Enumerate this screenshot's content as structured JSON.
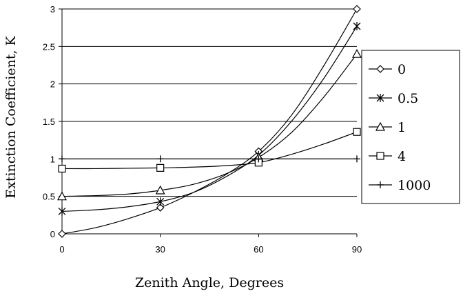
{
  "chart_data": {
    "type": "line",
    "xlabel": "Zenith Angle, Degrees",
    "ylabel": "Extinction Coefficient, K",
    "xlim": [
      0,
      90
    ],
    "ylim": [
      0,
      3
    ],
    "xticks": [
      "0",
      "30",
      "60",
      "90"
    ],
    "xtick_values": [
      0,
      30,
      60,
      90
    ],
    "yticks": [
      "0",
      "0.5",
      "1",
      "1.5",
      "2",
      "2.5",
      "3"
    ],
    "ytick_values": [
      0,
      0.5,
      1,
      1.5,
      2,
      2.5,
      3
    ],
    "grid": "horizontal",
    "legend_position": "right",
    "series": [
      {
        "name": "0",
        "marker": "diamond",
        "points": [
          [
            0,
            0.0
          ],
          [
            30,
            0.35
          ],
          [
            60,
            1.1
          ],
          [
            90,
            3.0
          ]
        ],
        "curve": [
          [
            0,
            0.0
          ],
          [
            10,
            0.08
          ],
          [
            20,
            0.2
          ],
          [
            30,
            0.35
          ],
          [
            40,
            0.55
          ],
          [
            50,
            0.79
          ],
          [
            60,
            1.1
          ],
          [
            70,
            1.58
          ],
          [
            80,
            2.25
          ],
          [
            90,
            3.0
          ]
        ]
      },
      {
        "name": "0.5",
        "marker": "asterisk",
        "points": [
          [
            0,
            0.3
          ],
          [
            30,
            0.43
          ],
          [
            60,
            1.05
          ],
          [
            90,
            2.77
          ]
        ],
        "curve": [
          [
            0,
            0.3
          ],
          [
            10,
            0.32
          ],
          [
            20,
            0.36
          ],
          [
            30,
            0.43
          ],
          [
            40,
            0.55
          ],
          [
            50,
            0.76
          ],
          [
            60,
            1.05
          ],
          [
            70,
            1.5
          ],
          [
            80,
            2.08
          ],
          [
            90,
            2.77
          ]
        ]
      },
      {
        "name": "1",
        "marker": "triangle",
        "points": [
          [
            0,
            0.5
          ],
          [
            30,
            0.58
          ],
          [
            60,
            1.02
          ],
          [
            90,
            2.4
          ]
        ],
        "curve": [
          [
            0,
            0.5
          ],
          [
            10,
            0.51
          ],
          [
            20,
            0.53
          ],
          [
            30,
            0.58
          ],
          [
            40,
            0.66
          ],
          [
            50,
            0.8
          ],
          [
            60,
            1.02
          ],
          [
            70,
            1.35
          ],
          [
            80,
            1.83
          ],
          [
            90,
            2.4
          ]
        ]
      },
      {
        "name": "4",
        "marker": "square",
        "points": [
          [
            0,
            0.87
          ],
          [
            30,
            0.88
          ],
          [
            60,
            0.95
          ],
          [
            90,
            1.36
          ]
        ],
        "curve": [
          [
            0,
            0.87
          ],
          [
            10,
            0.87
          ],
          [
            20,
            0.875
          ],
          [
            30,
            0.88
          ],
          [
            40,
            0.89
          ],
          [
            50,
            0.91
          ],
          [
            60,
            0.95
          ],
          [
            70,
            1.06
          ],
          [
            80,
            1.2
          ],
          [
            90,
            1.36
          ]
        ]
      },
      {
        "name": "1000",
        "marker": "plus",
        "points": [
          [
            0,
            1.0
          ],
          [
            30,
            1.0
          ],
          [
            60,
            1.0
          ],
          [
            90,
            1.0
          ]
        ],
        "curve": [
          [
            0,
            1.0
          ],
          [
            30,
            1.0
          ],
          [
            60,
            1.0
          ],
          [
            90,
            1.0
          ]
        ]
      }
    ]
  }
}
